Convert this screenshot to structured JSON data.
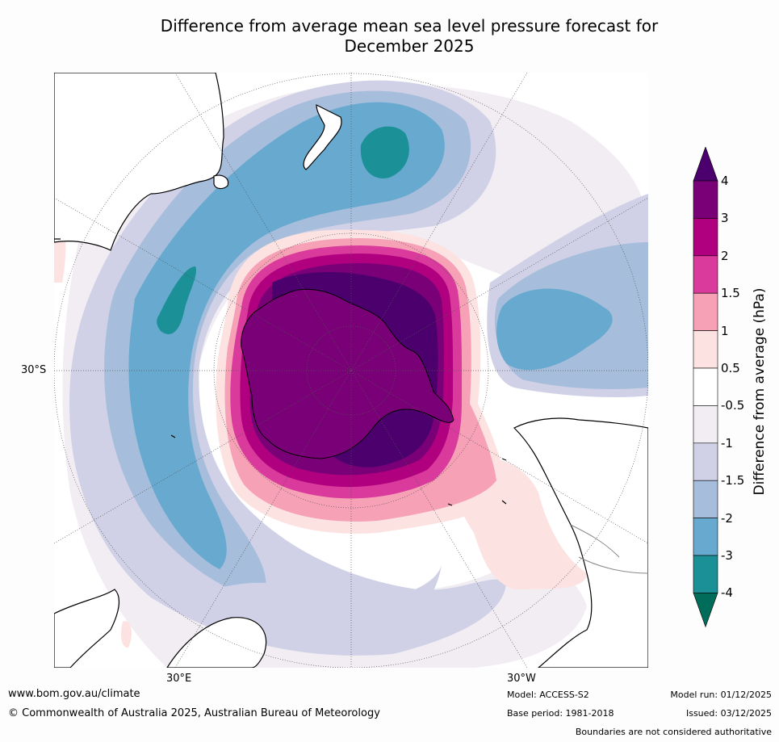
{
  "title_line1": "Difference from average mean sea level pressure forecast for",
  "title_line2": "December 2025",
  "map": {
    "lat_label": "30°S",
    "lon_labels": [
      "30°E",
      "30°W"
    ],
    "land_color": "#ffffff",
    "coast_color": "#000000"
  },
  "colorbar": {
    "label": "Difference from average (hPa)",
    "ticks": [
      "4",
      "3",
      "2",
      "1.5",
      "1",
      "0.5",
      "-0.5",
      "-1",
      "-1.5",
      "-2",
      "-3",
      "-4"
    ],
    "colors": [
      "#4b006e",
      "#7a0077",
      "#b0007f",
      "#d93a9c",
      "#f6a1b5",
      "#fde2e2",
      "#ffffff",
      "#f1edf3",
      "#d0d1e6",
      "#a6bddb",
      "#67a9cf",
      "#1b9096",
      "#016c59"
    ]
  },
  "footer": {
    "website": "www.bom.gov.au/climate",
    "copyright": "© Commonwealth of Australia 2025, Australian Bureau of Meteorology",
    "model": "Model: ACCESS-S2",
    "base_period": "Base period: 1981-2018",
    "model_run": "Model run: 01/12/2025",
    "issued": "Issued: 03/12/2025",
    "disclaimer": "Boundaries are not considered authoritative"
  }
}
